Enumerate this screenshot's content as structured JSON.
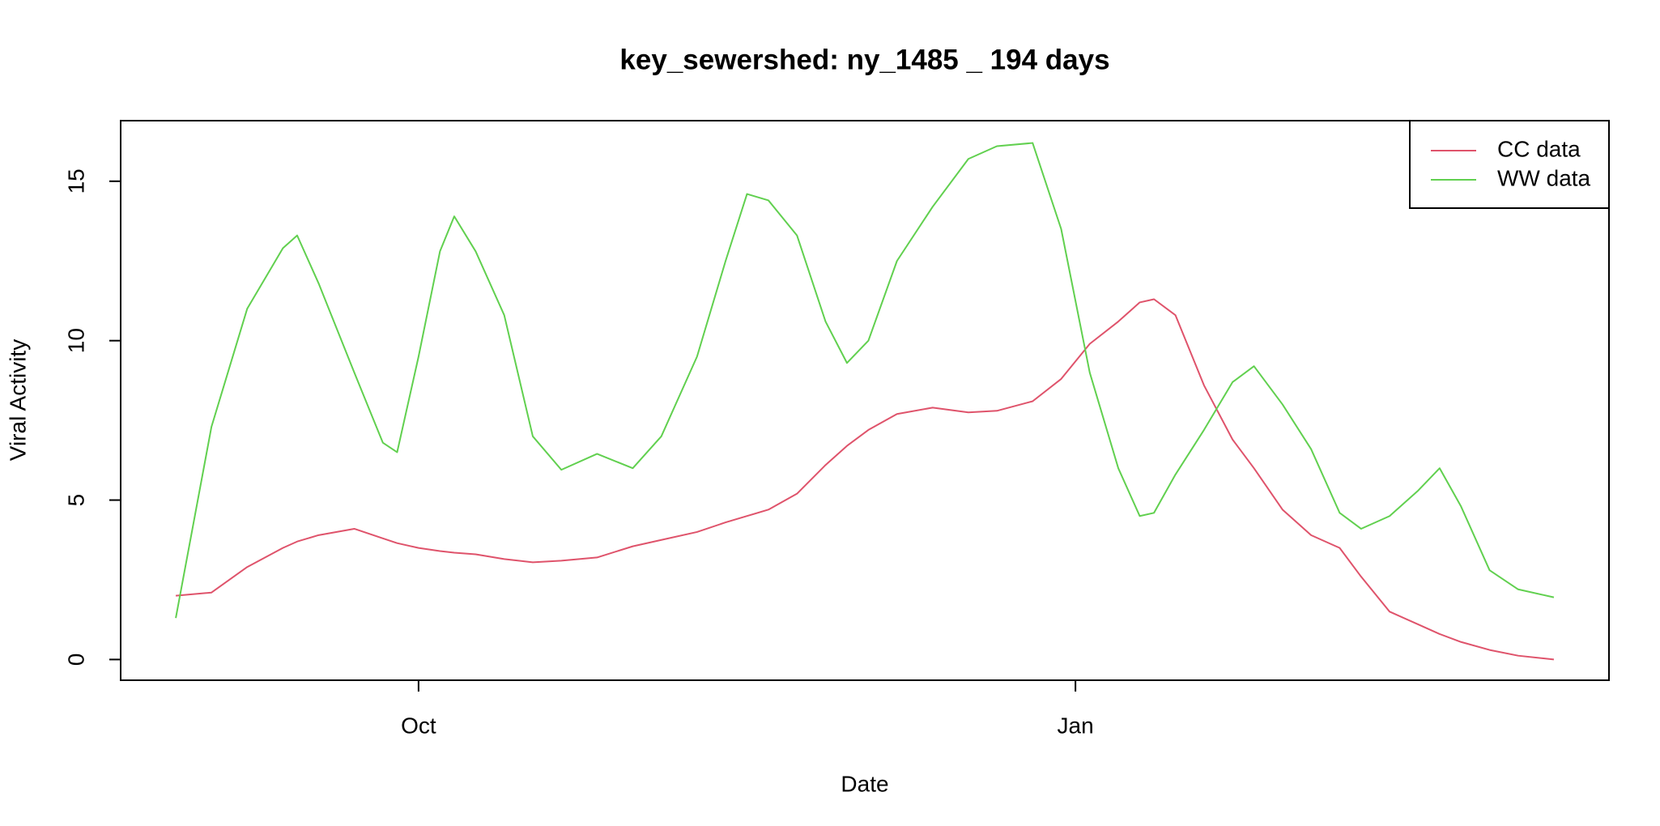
{
  "chart_data": {
    "type": "line",
    "title": "key_sewershed:  ny_1485 _ 194  days",
    "x_label": "Date",
    "y_label": "Viral Activity",
    "x": [
      0,
      5,
      10,
      15,
      17,
      20,
      25,
      29,
      31,
      34,
      37,
      39,
      42,
      46,
      50,
      54,
      59,
      64,
      68,
      73,
      77,
      80,
      83,
      87,
      91,
      94,
      97,
      101,
      106,
      111,
      115,
      120,
      124,
      128,
      132,
      135,
      137,
      140,
      144,
      148,
      151,
      155,
      159,
      163,
      166,
      170,
      174,
      177,
      180,
      184,
      188,
      193
    ],
    "series": [
      {
        "name": "CC data",
        "color": "#DF536B",
        "values": [
          2.0,
          2.1,
          2.9,
          3.5,
          3.7,
          3.9,
          4.1,
          3.8,
          3.65,
          3.5,
          3.4,
          3.35,
          3.3,
          3.15,
          3.05,
          3.1,
          3.2,
          3.55,
          3.75,
          4.0,
          4.3,
          4.5,
          4.7,
          5.2,
          6.1,
          6.7,
          7.2,
          7.7,
          7.9,
          7.75,
          7.8,
          8.1,
          8.8,
          9.9,
          10.6,
          11.2,
          11.3,
          10.8,
          8.6,
          6.9,
          6.0,
          4.7,
          3.9,
          3.5,
          2.6,
          1.5,
          1.1,
          0.8,
          0.55,
          0.3,
          0.12,
          0.0
        ]
      },
      {
        "name": "WW data",
        "color": "#61D04F",
        "values": [
          1.3,
          7.3,
          11.0,
          12.9,
          13.3,
          11.8,
          9.0,
          6.8,
          6.5,
          9.5,
          12.8,
          13.9,
          12.8,
          10.8,
          7.0,
          5.95,
          6.45,
          6.0,
          7.0,
          9.5,
          12.5,
          14.6,
          14.4,
          13.3,
          10.6,
          9.3,
          10.0,
          12.5,
          14.2,
          15.7,
          16.1,
          16.2,
          13.5,
          9.0,
          6.0,
          4.5,
          4.6,
          5.8,
          7.2,
          8.7,
          9.2,
          8.0,
          6.6,
          4.6,
          4.1,
          4.5,
          5.3,
          6.0,
          4.8,
          2.8,
          2.2,
          1.95
        ]
      }
    ],
    "xlim": [
      -7.72,
      200.72
    ],
    "xticks": [
      {
        "value": 34,
        "label": "Oct"
      },
      {
        "value": 126,
        "label": "Jan"
      }
    ],
    "ylim": [
      -0.65,
      16.9
    ],
    "yticks": [
      0,
      5,
      10,
      15
    ],
    "legend": "top-right"
  }
}
